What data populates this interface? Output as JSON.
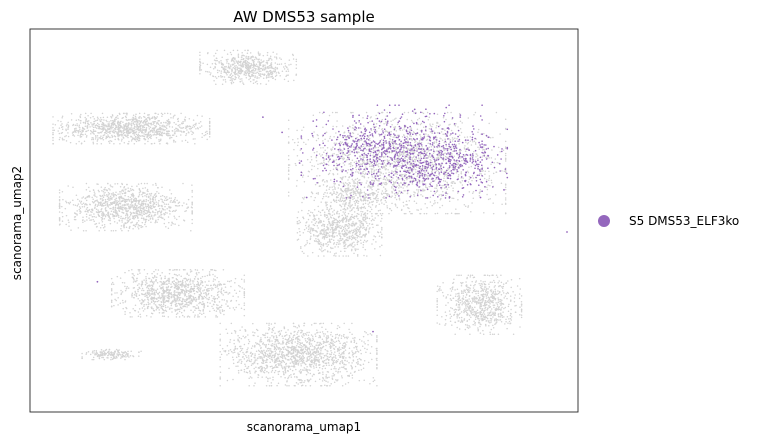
{
  "chart_data": {
    "type": "scatter",
    "title": "AW DMS53 sample",
    "xlabel": "scanorama_umap1",
    "ylabel": "scanorama_umap2",
    "xlim": [
      0,
      100
    ],
    "ylim": [
      0,
      100
    ],
    "grid": false,
    "legend_position": "right",
    "background_color": "#d3d3d3",
    "series": [
      {
        "name": "S5 DMS53_ELF3ko",
        "color": "#9467bd",
        "clusters": [
          {
            "x": 66,
            "y": 68,
            "sx": 7.5,
            "sy": 5.5,
            "n": 650
          },
          {
            "x": 75,
            "y": 65,
            "sx": 5.5,
            "sy": 4.0,
            "n": 350
          },
          {
            "x": 59,
            "y": 70,
            "sx": 2.5,
            "sy": 2.0,
            "n": 60
          }
        ],
        "outliers": [
          [
            42.5,
            77
          ],
          [
            70.2,
            79
          ],
          [
            79.5,
            71
          ],
          [
            86.5,
            58
          ],
          [
            82.2,
            56
          ],
          [
            98,
            47
          ],
          [
            12.3,
            34
          ],
          [
            49.2,
            65
          ],
          [
            50.5,
            56
          ],
          [
            62.6,
            21
          ],
          [
            46,
            73
          ]
        ]
      }
    ],
    "background_clusters": [
      {
        "x": 39.8,
        "y": 90,
        "sx": 4.0,
        "sy": 2.0,
        "n": 600
      },
      {
        "x": 18.5,
        "y": 74,
        "sx": 6.5,
        "sy": 1.8,
        "n": 1000
      },
      {
        "x": 17.5,
        "y": 53.5,
        "sx": 5.5,
        "sy": 2.8,
        "n": 1000
      },
      {
        "x": 56.5,
        "y": 48,
        "sx": 3.5,
        "sy": 3.3,
        "n": 700
      },
      {
        "x": 27,
        "y": 31,
        "sx": 5.5,
        "sy": 2.8,
        "n": 1000
      },
      {
        "x": 49,
        "y": 15,
        "sx": 6.5,
        "sy": 3.7,
        "n": 1400
      },
      {
        "x": 82,
        "y": 28,
        "sx": 3.5,
        "sy": 3.5,
        "n": 700
      },
      {
        "x": 15,
        "y": 15,
        "sx": 2.5,
        "sy": 0.6,
        "n": 150
      },
      {
        "x": 67,
        "y": 65,
        "sx": 9.0,
        "sy": 6.0,
        "n": 1800
      },
      {
        "x": 59,
        "y": 56.5,
        "sx": 3.5,
        "sy": 1.5,
        "n": 200
      }
    ]
  }
}
